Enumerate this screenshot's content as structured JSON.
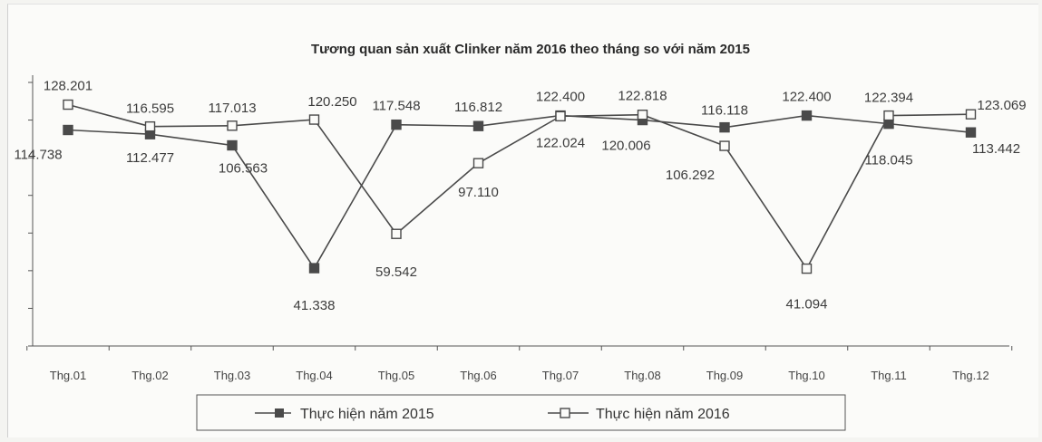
{
  "chart_data": {
    "type": "line",
    "title": "Tương quan sản xuất Clinker năm 2016 theo tháng so với năm 2015",
    "xlabel": "",
    "ylabel": "",
    "categories": [
      "Thg.01",
      "Thg.02",
      "Thg.03",
      "Thg.04",
      "Thg.05",
      "Thg.06",
      "Thg.07",
      "Thg.08",
      "Thg.09",
      "Thg.10",
      "Thg.11",
      "Thg.12"
    ],
    "ylim": [
      0,
      140
    ],
    "grid": false,
    "legend_position": "bottom",
    "series": [
      {
        "name": "Thực hiện năm 2015",
        "marker": "filled-square",
        "color": "#4a4a4a",
        "values": [
          114.738,
          112.477,
          106.563,
          41.338,
          117.548,
          116.812,
          122.4,
          120.006,
          116.118,
          122.4,
          118.045,
          113.442
        ],
        "labels": [
          "114.738",
          "112.477",
          "106.563",
          "41.338",
          "117.548",
          "116.812",
          "122.400",
          "120.006",
          "116.118",
          "122.400",
          "118.045",
          "113.442"
        ]
      },
      {
        "name": "Thực hiện năm 2016",
        "marker": "hollow-square",
        "color": "#4a4a4a",
        "values": [
          128.201,
          116.595,
          117.013,
          120.25,
          59.542,
          97.11,
          122.024,
          122.818,
          106.292,
          41.094,
          122.394,
          123.069
        ],
        "labels": [
          "128.201",
          "116.595",
          "117.013",
          "120.250",
          "59.542",
          "97.110",
          "122.024",
          "122.818",
          "106.292",
          "41.094",
          "122.394",
          "123.069"
        ]
      }
    ]
  }
}
